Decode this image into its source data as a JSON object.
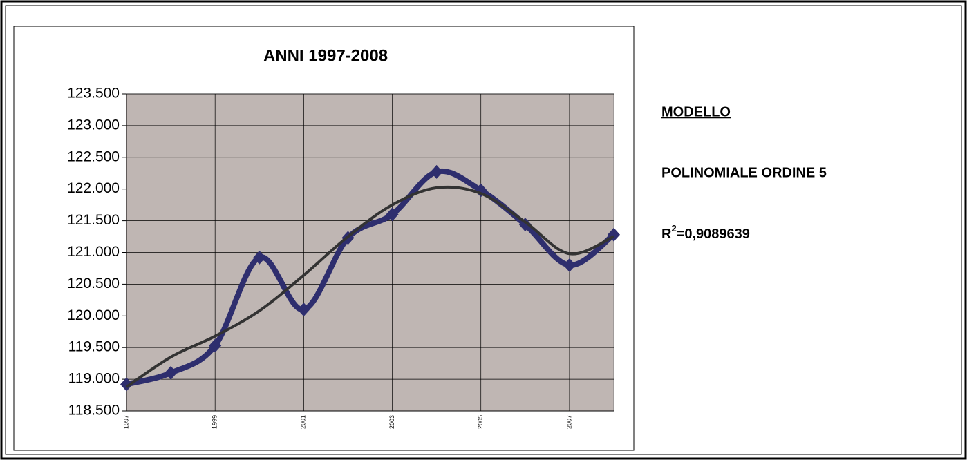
{
  "chart_data": {
    "type": "line",
    "title": "ANNI 1997-2008",
    "categories": [
      "1997",
      null,
      "1999",
      null,
      "2001",
      null,
      "2003",
      null,
      "2005",
      null,
      "2007",
      null
    ],
    "series": [
      {
        "color": "#2e2e6e",
        "values": [
          118920,
          119100,
          119530,
          120920,
          120100,
          121230,
          121600,
          122270,
          121980,
          121440,
          120800,
          121280
        ]
      },
      {
        "color": "#333333",
        "values": [
          118880,
          119350,
          119680,
          120080,
          120640,
          121250,
          121750,
          122020,
          121930,
          121480,
          120980,
          121250
        ]
      }
    ],
    "ylim": [
      118500,
      123500
    ],
    "yticks": [
      {
        "value": 118500,
        "label": "118.500"
      },
      {
        "value": 119000,
        "label": "119.000"
      },
      {
        "value": 119500,
        "label": "119.500"
      },
      {
        "value": 120000,
        "label": "120.000"
      },
      {
        "value": 120500,
        "label": "120.500"
      },
      {
        "value": 121000,
        "label": "121.000"
      },
      {
        "value": 121500,
        "label": "121.500"
      },
      {
        "value": 122000,
        "label": "122.000"
      },
      {
        "value": 122500,
        "label": "122.500"
      },
      {
        "value": 123000,
        "label": "123.000"
      },
      {
        "value": 123500,
        "label": "123.500"
      }
    ],
    "grid": true,
    "plot_background": "#bfb6b3"
  },
  "annotations": {
    "heading": "MODELLO",
    "model": "POLINOMIALE ORDINE 5",
    "r_squared": {
      "symbol": "R",
      "exponent": "2",
      "value": "=0,9089639"
    }
  }
}
